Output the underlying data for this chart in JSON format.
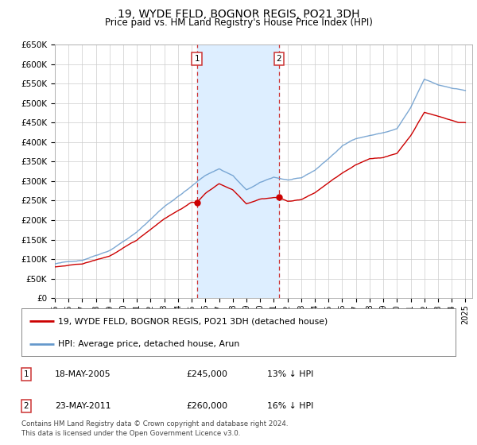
{
  "title": "19, WYDE FELD, BOGNOR REGIS, PO21 3DH",
  "subtitle": "Price paid vs. HM Land Registry's House Price Index (HPI)",
  "ylim": [
    0,
    650000
  ],
  "yticks": [
    0,
    50000,
    100000,
    150000,
    200000,
    250000,
    300000,
    350000,
    400000,
    450000,
    500000,
    550000,
    600000,
    650000
  ],
  "ytick_labels": [
    "£0",
    "£50K",
    "£100K",
    "£150K",
    "£200K",
    "£250K",
    "£300K",
    "£350K",
    "£400K",
    "£450K",
    "£500K",
    "£550K",
    "£600K",
    "£650K"
  ],
  "xlim_start": 1995.0,
  "xlim_end": 2025.5,
  "transaction1_x": 2005.38,
  "transaction1_y": 245000,
  "transaction1_label": "18-MAY-2005",
  "transaction1_price": "£245,000",
  "transaction1_hpi": "13% ↓ HPI",
  "transaction2_x": 2011.38,
  "transaction2_y": 260000,
  "transaction2_label": "23-MAY-2011",
  "transaction2_price": "£260,000",
  "transaction2_hpi": "16% ↓ HPI",
  "red_line_color": "#cc0000",
  "blue_line_color": "#6699cc",
  "shade_color": "#ddeeff",
  "legend_label_red": "19, WYDE FELD, BOGNOR REGIS, PO21 3DH (detached house)",
  "legend_label_blue": "HPI: Average price, detached house, Arun",
  "footnote": "Contains HM Land Registry data © Crown copyright and database right 2024.\nThis data is licensed under the Open Government Licence v3.0.",
  "background_color": "#ffffff",
  "grid_color": "#cccccc",
  "hpi_keypoints_x": [
    1995,
    1997,
    1999,
    2001,
    2003,
    2005,
    2006,
    2007,
    2008,
    2009,
    2010,
    2011,
    2012,
    2013,
    2014,
    2015,
    2016,
    2017,
    2018,
    2019,
    2020,
    2021,
    2022,
    2023,
    2024,
    2025
  ],
  "hpi_keypoints_y": [
    88000,
    98000,
    125000,
    172000,
    238000,
    290000,
    318000,
    335000,
    318000,
    280000,
    298000,
    312000,
    305000,
    308000,
    328000,
    358000,
    390000,
    410000,
    418000,
    425000,
    435000,
    488000,
    560000,
    545000,
    538000,
    532000
  ],
  "red_keypoints_x": [
    1995,
    1997,
    1999,
    2001,
    2003,
    2005,
    2005.38,
    2006,
    2007,
    2008,
    2009,
    2010,
    2011,
    2011.38,
    2012,
    2013,
    2014,
    2015,
    2016,
    2017,
    2018,
    2019,
    2020,
    2021,
    2022,
    2023,
    2024,
    2024.5
  ],
  "red_keypoints_y": [
    80000,
    87000,
    107000,
    147000,
    203000,
    245000,
    245000,
    268000,
    293000,
    278000,
    243000,
    256000,
    260000,
    260000,
    250000,
    255000,
    272000,
    298000,
    322000,
    342000,
    358000,
    362000,
    372000,
    418000,
    478000,
    468000,
    458000,
    452000
  ]
}
